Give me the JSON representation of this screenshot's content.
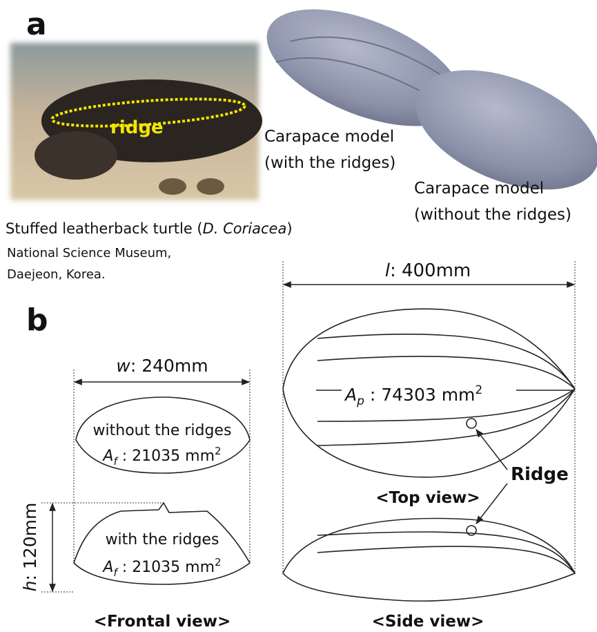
{
  "panels": {
    "a": "a",
    "b": "b"
  },
  "photo": {
    "label": "ridge",
    "caption": {
      "before": "Stuffed leatherback turtle (",
      "species": "D. Coriacea",
      "after": ")"
    },
    "credit": [
      "National Science Museum,",
      "Daejeon, Korea."
    ]
  },
  "models": [
    {
      "title": "Carapace model",
      "variant": "(with the ridges)"
    },
    {
      "title": "Carapace model",
      "variant": "(without the ridges)"
    }
  ],
  "dimensions": {
    "length": {
      "symbol": "l",
      "text": ": 400mm"
    },
    "width": {
      "symbol": "w",
      "text": ": 240mm"
    },
    "height": {
      "symbol": "h",
      "text": ": 120mm"
    }
  },
  "top_view": {
    "area": {
      "symbol": "A",
      "subscript": "p",
      "text": " : 74303 mm",
      "superscript": "2"
    },
    "ridge_label": "Ridge",
    "caption": "<Top view>"
  },
  "frontal_view": {
    "without": {
      "label": "without the ridges",
      "area": {
        "symbol": "A",
        "subscript": "f",
        "text": " : 21035 mm",
        "superscript": "2"
      }
    },
    "with": {
      "label": "with the ridges",
      "area": {
        "symbol": "A",
        "subscript": "f",
        "text": " : 21035 mm",
        "superscript": "2"
      }
    },
    "caption": "<Frontal view>"
  },
  "side_view": {
    "caption": "<Side view>"
  }
}
